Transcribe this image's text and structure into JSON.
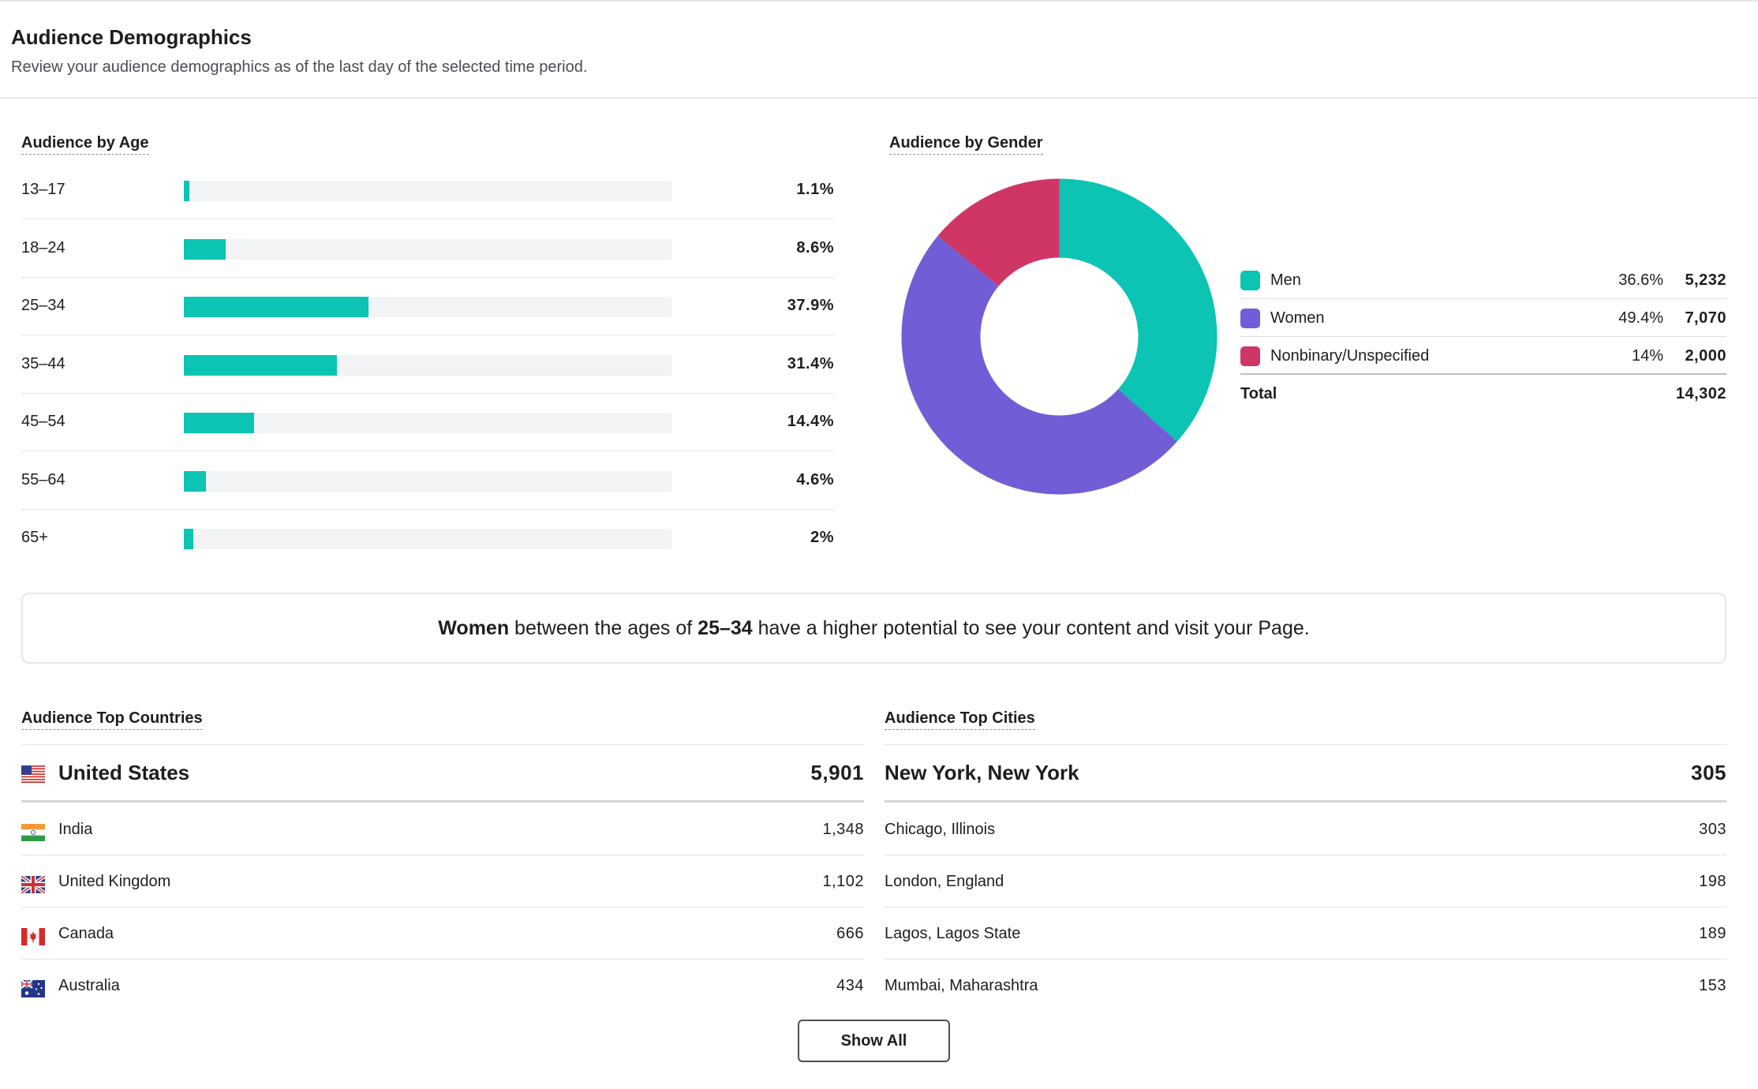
{
  "header": {
    "title": "Audience Demographics",
    "subtitle": "Review your audience demographics as of the last day of the selected time period."
  },
  "age": {
    "title": "Audience by Age",
    "rows": [
      {
        "label": "13–17",
        "value": 1.1,
        "display": "1.1%"
      },
      {
        "label": "18–24",
        "value": 8.6,
        "display": "8.6%"
      },
      {
        "label": "25–34",
        "value": 37.9,
        "display": "37.9%"
      },
      {
        "label": "35–44",
        "value": 31.4,
        "display": "31.4%"
      },
      {
        "label": "45–54",
        "value": 14.4,
        "display": "14.4%"
      },
      {
        "label": "55–64",
        "value": 4.6,
        "display": "4.6%"
      },
      {
        "label": "65+",
        "value": 2,
        "display": "2%"
      }
    ],
    "bar_max": 100,
    "bar_color": "#0bc4b4"
  },
  "gender": {
    "title": "Audience by Gender",
    "items": [
      {
        "label": "Men",
        "percent": "36.6%",
        "count": "5,232",
        "value": 5232,
        "color": "#0bc4b4"
      },
      {
        "label": "Women",
        "percent": "49.4%",
        "count": "7,070",
        "value": 7070,
        "color": "#715dd6"
      },
      {
        "label": "Nonbinary/Unspecified",
        "percent": "14%",
        "count": "2,000",
        "value": 2000,
        "color": "#cf3665"
      }
    ],
    "total_label": "Total",
    "total_value": "14,302"
  },
  "insight": {
    "gender": "Women",
    "middle": " between the ages of ",
    "age": "25–34",
    "rest": " have a higher potential to see your content and visit your Page."
  },
  "countries": {
    "title": "Audience Top Countries",
    "items": [
      {
        "name": "United States",
        "count": "5,901",
        "flag": "flag-us"
      },
      {
        "name": "India",
        "count": "1,348",
        "flag": "flag-in"
      },
      {
        "name": "United Kingdom",
        "count": "1,102",
        "flag": "flag-gb"
      },
      {
        "name": "Canada",
        "count": "666",
        "flag": "flag-ca"
      },
      {
        "name": "Australia",
        "count": "434",
        "flag": "flag-au"
      }
    ]
  },
  "cities": {
    "title": "Audience Top Cities",
    "items": [
      {
        "name": "New York, New York",
        "count": "305"
      },
      {
        "name": "Chicago, Illinois",
        "count": "303"
      },
      {
        "name": "London, England",
        "count": "198"
      },
      {
        "name": "Lagos, Lagos State",
        "count": "189"
      },
      {
        "name": "Mumbai, Maharashtra",
        "count": "153"
      }
    ]
  },
  "show_all_label": "Show All"
}
